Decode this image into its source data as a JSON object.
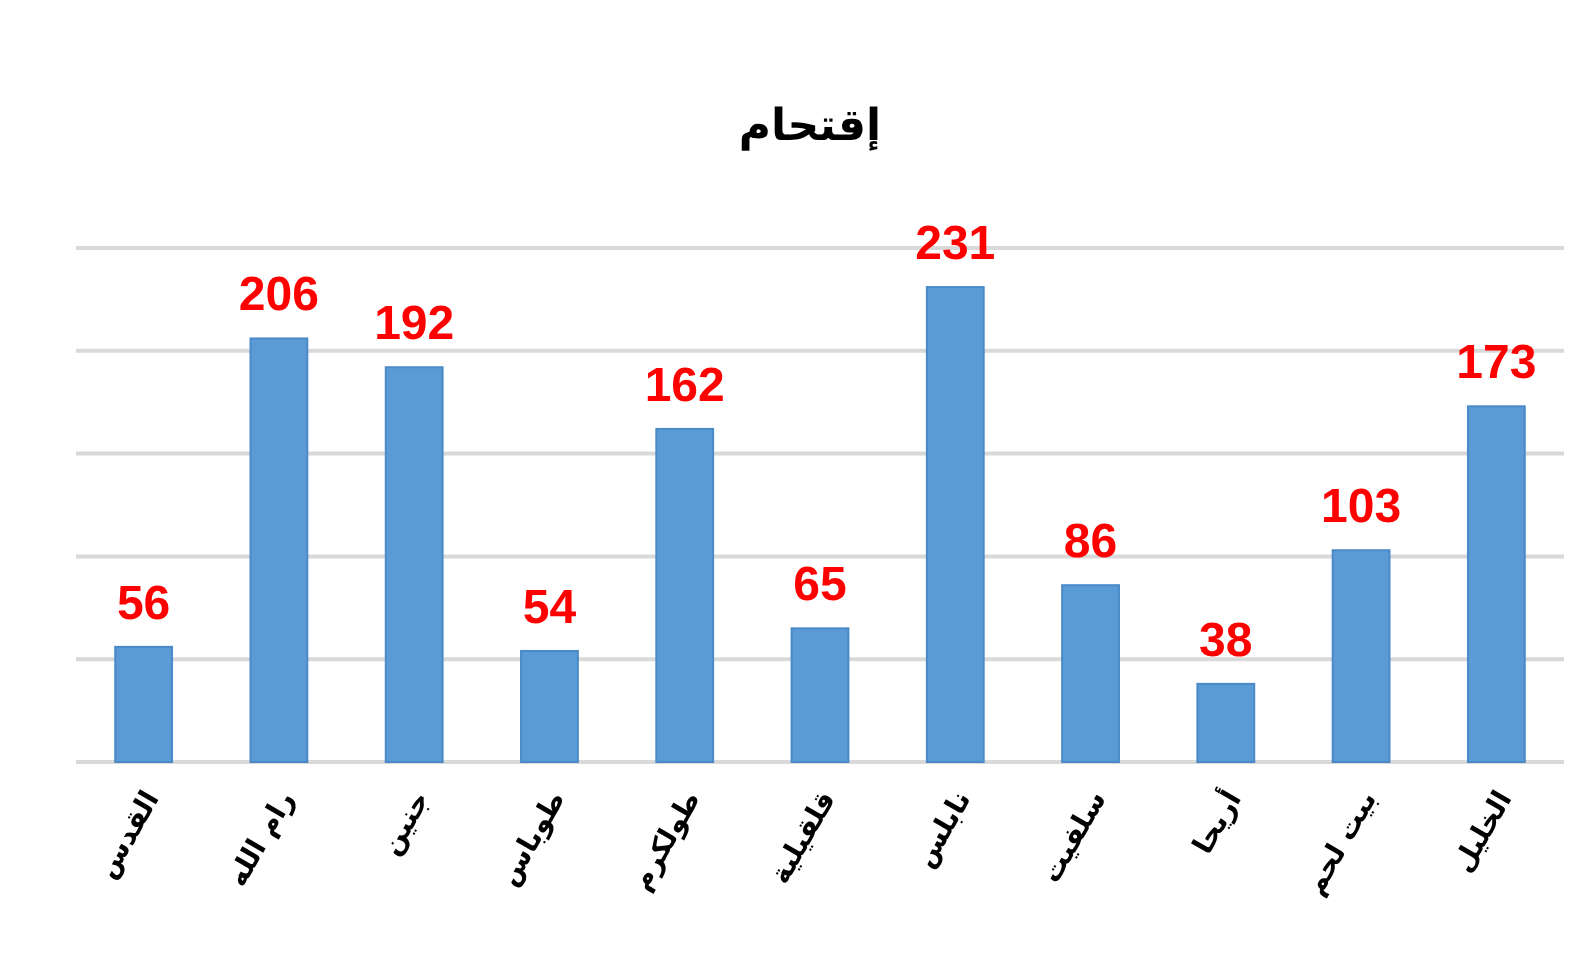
{
  "chart_data": {
    "type": "bar",
    "title": "إقتحام",
    "categories": [
      "القدس",
      "رام الله",
      "جنين",
      "طوباس",
      "طولكرم",
      "قلقيلية",
      "نابلس",
      "سلفيت",
      "أريحا",
      "بيت لحم",
      "الخليل"
    ],
    "values": [
      56,
      206,
      192,
      54,
      162,
      65,
      231,
      86,
      38,
      103,
      173
    ],
    "color": "#5b9bd5",
    "data_labels": true,
    "grid": "y",
    "tick_labels": "x",
    "ylim": [
      0,
      250
    ],
    "yticks": [
      {
        "value": 0,
        "label": null
      },
      {
        "value": 50,
        "label": null
      },
      {
        "value": 100,
        "label": null
      },
      {
        "value": 150,
        "label": null
      },
      {
        "value": 200,
        "label": null
      },
      {
        "value": 250,
        "label": null
      }
    ]
  }
}
